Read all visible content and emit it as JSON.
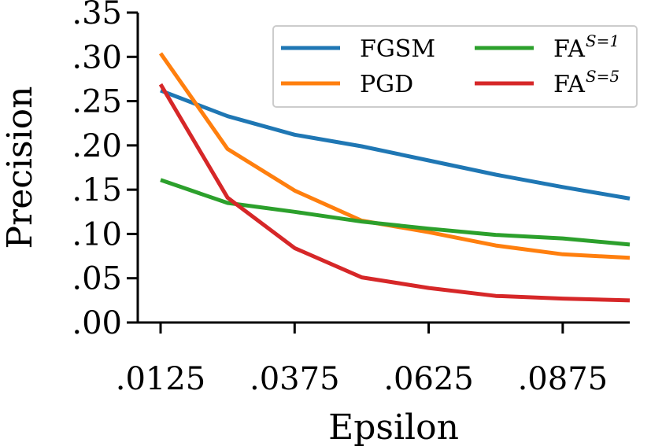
{
  "chart_data": {
    "type": "line",
    "xlabel": "Epsilon",
    "ylabel": "Precision",
    "xlim": [
      0.0125,
      0.1
    ],
    "ylim": [
      0.0,
      0.35
    ],
    "x_ticks": [
      0.0125,
      0.0375,
      0.0625,
      0.0875
    ],
    "x_tick_labels": [
      ".0125",
      ".0375",
      ".0625",
      ".0875"
    ],
    "y_ticks": [
      0.0,
      0.05,
      0.1,
      0.15,
      0.2,
      0.25,
      0.3,
      0.35
    ],
    "y_tick_labels": [
      ".00",
      ".05",
      ".10",
      ".15",
      ".20",
      ".25",
      ".30",
      ".35"
    ],
    "x": [
      0.0125,
      0.025,
      0.0375,
      0.05,
      0.0625,
      0.075,
      0.0875,
      0.1
    ],
    "grid": false,
    "legend_position": "top-right",
    "series": [
      {
        "name": "FGSM",
        "label_main": "FGSM",
        "label_sup": "",
        "color": "#1f77b4",
        "values": [
          0.262,
          0.233,
          0.212,
          0.199,
          0.183,
          0.167,
          0.153,
          0.14
        ]
      },
      {
        "name": "PGD",
        "label_main": "PGD",
        "label_sup": "",
        "color": "#ff7f0e",
        "values": [
          0.304,
          0.196,
          0.149,
          0.115,
          0.102,
          0.087,
          0.077,
          0.073
        ]
      },
      {
        "name": "FA^{S=1}",
        "label_main": "FA",
        "label_sup": "S=1",
        "color": "#2ca02c",
        "values": [
          0.161,
          0.135,
          0.125,
          0.114,
          0.106,
          0.099,
          0.095,
          0.088
        ]
      },
      {
        "name": "FA^{S=5}",
        "label_main": "FA",
        "label_sup": "S=5",
        "color": "#d62728",
        "values": [
          0.269,
          0.141,
          0.084,
          0.051,
          0.039,
          0.03,
          0.027,
          0.025
        ]
      }
    ]
  }
}
